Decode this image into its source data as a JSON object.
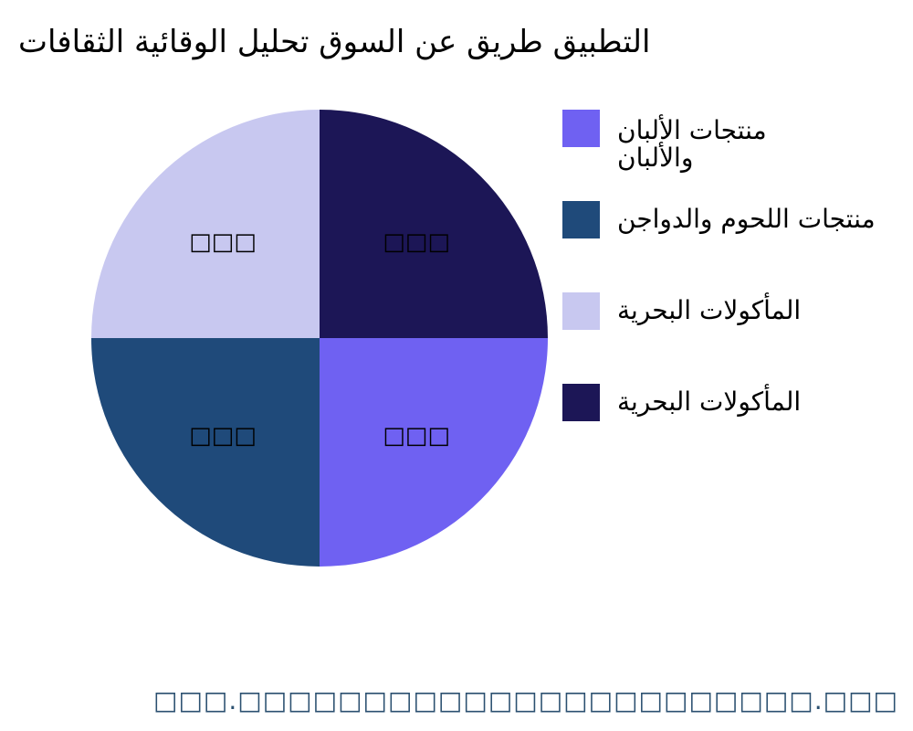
{
  "chart_data": {
    "type": "pie",
    "title": "التطبيق طريق عن السوق تحليل الوقائية الثقافات",
    "start_angle": "3 o'clock",
    "direction": "clockwise",
    "slices": [
      {
        "name": "منتجات الألبان والألبان",
        "value": 25,
        "label": "□□□",
        "color": "#6f61f2"
      },
      {
        "name": "منتجات اللحوم والدواجن",
        "value": 25,
        "label": "□□□",
        "color": "#1f4a7a"
      },
      {
        "name": "المأكولات البحرية",
        "value": 25,
        "label": "□□□",
        "color": "#c8c8f0"
      },
      {
        "name": "المأكولات البحرية",
        "value": 25,
        "label": "□□□",
        "color": "#1c1656"
      }
    ],
    "legend_placement": "right"
  },
  "legend": {
    "items": [
      {
        "line1": "منتجات الألبان",
        "line2": "والألبان"
      },
      {
        "line1": "منتجات اللحوم والدواجن"
      },
      {
        "line1": "المأكولات البحرية"
      },
      {
        "line1": "المأكولات البحرية"
      }
    ]
  },
  "footer": "□□□.□□□□□□□□□□□□□□□□□□□□□□□.□□□"
}
